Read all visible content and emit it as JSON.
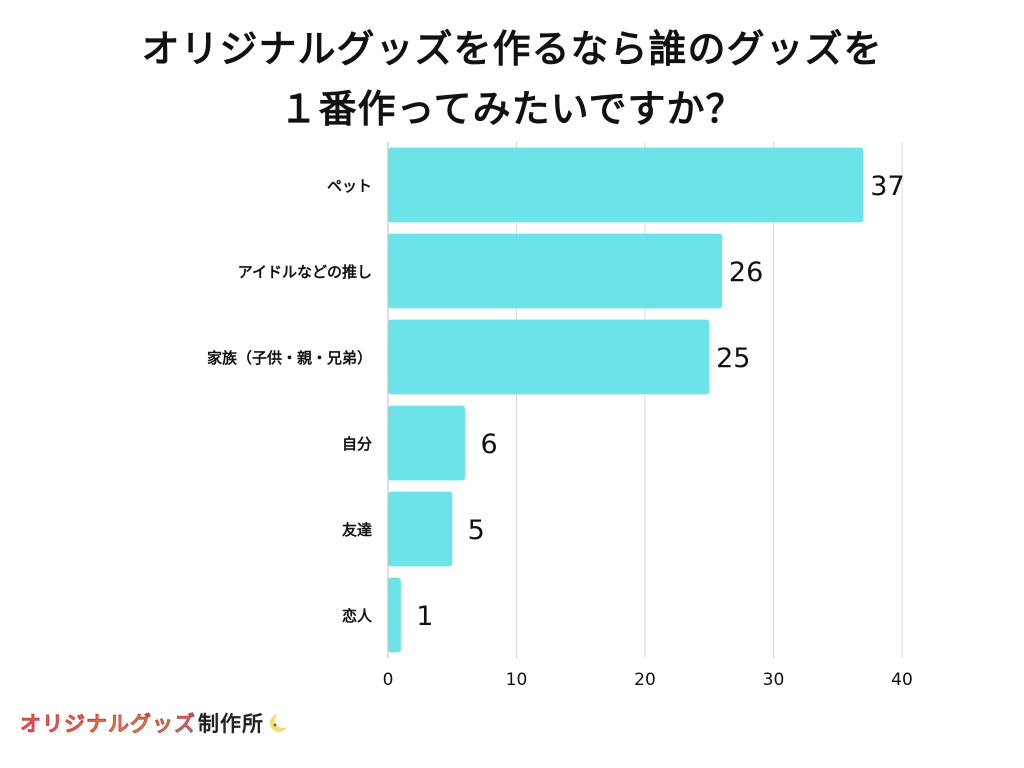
{
  "title": {
    "line1": "オリジナルグッズを作るなら誰のグッズを",
    "line2": "１番作ってみたいですか？"
  },
  "logo": {
    "brand": "オリジナルグッズ",
    "suffix": "制作所",
    "icon": "moon-icon"
  },
  "colors": {
    "bar": "#6be3e8",
    "grid": "#d9d9d9",
    "text": "#111111"
  },
  "chart_data": {
    "type": "bar",
    "orientation": "horizontal",
    "categories": [
      "ペット",
      "アイドルなどの推し",
      "家族（子供・親・兄弟）",
      "自分",
      "友達",
      "恋人"
    ],
    "values": [
      37,
      26,
      25,
      6,
      5,
      1
    ],
    "xlim": [
      0,
      40
    ],
    "xticks": [
      0,
      10,
      20,
      30,
      40
    ],
    "grid": true,
    "legend": "none"
  }
}
